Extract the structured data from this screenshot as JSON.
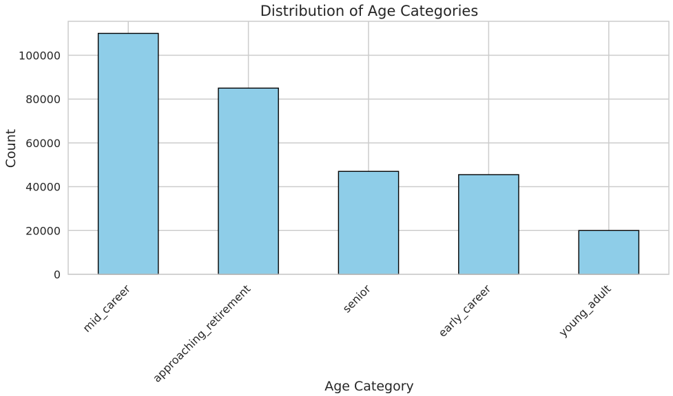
{
  "chart_data": {
    "type": "bar",
    "title": "Distribution of Age Categories",
    "xlabel": "Age Category",
    "ylabel": "Count",
    "categories": [
      "mid_career",
      "approaching_retirement",
      "senior",
      "early_career",
      "young_adult"
    ],
    "values": [
      110000,
      85000,
      47000,
      45500,
      20000
    ],
    "ylim": [
      0,
      115500
    ],
    "yticks": [
      0,
      20000,
      40000,
      60000,
      80000,
      100000
    ],
    "ytick_labels": [
      "0",
      "20000",
      "40000",
      "60000",
      "80000",
      "100000"
    ],
    "grid": true,
    "bar_color": "#8ecde8",
    "bar_edge_color": "#000000",
    "grid_color": "#cccccc",
    "text_color": "#262626"
  }
}
